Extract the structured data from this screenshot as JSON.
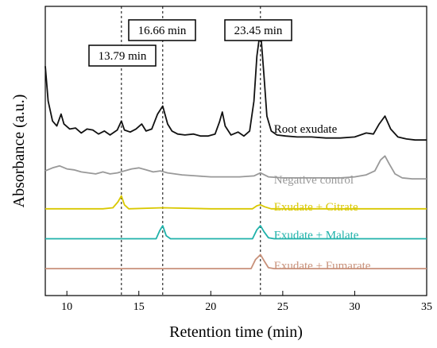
{
  "chart_data": {
    "type": "line",
    "title": "",
    "xlabel": "Retention time (min)",
    "ylabel": "Absorbance (a.u.)",
    "xlim": [
      8.5,
      35
    ],
    "xticks": [
      10,
      15,
      20,
      25,
      30,
      35
    ],
    "grid": false,
    "y_tick_labels_shown": false,
    "reference_lines": [
      {
        "x": 13.79,
        "label": "13.79 min"
      },
      {
        "x": 16.66,
        "label": "16.66 min"
      },
      {
        "x": 23.45,
        "label": "23.45 min"
      }
    ],
    "series": [
      {
        "name": "Root exudate",
        "color": "#111111",
        "baseline": 1.87,
        "points": [
          [
            8.5,
            2.6
          ],
          [
            8.7,
            2.25
          ],
          [
            9.0,
            2.05
          ],
          [
            9.3,
            2.0
          ],
          [
            9.6,
            2.12
          ],
          [
            9.8,
            2.02
          ],
          [
            10.2,
            1.97
          ],
          [
            10.6,
            1.98
          ],
          [
            11.0,
            1.93
          ],
          [
            11.4,
            1.97
          ],
          [
            11.8,
            1.96
          ],
          [
            12.2,
            1.92
          ],
          [
            12.6,
            1.95
          ],
          [
            13.0,
            1.91
          ],
          [
            13.5,
            1.96
          ],
          [
            13.79,
            2.05
          ],
          [
            14.0,
            1.96
          ],
          [
            14.4,
            1.94
          ],
          [
            14.8,
            1.97
          ],
          [
            15.2,
            2.02
          ],
          [
            15.5,
            1.95
          ],
          [
            15.9,
            1.97
          ],
          [
            16.3,
            2.12
          ],
          [
            16.66,
            2.2
          ],
          [
            17.0,
            2.02
          ],
          [
            17.3,
            1.95
          ],
          [
            17.7,
            1.92
          ],
          [
            18.2,
            1.91
          ],
          [
            18.8,
            1.92
          ],
          [
            19.3,
            1.9
          ],
          [
            19.8,
            1.9
          ],
          [
            20.3,
            1.92
          ],
          [
            20.6,
            2.04
          ],
          [
            20.8,
            2.14
          ],
          [
            21.0,
            2.0
          ],
          [
            21.4,
            1.91
          ],
          [
            21.9,
            1.94
          ],
          [
            22.3,
            1.9
          ],
          [
            22.7,
            1.95
          ],
          [
            23.0,
            2.25
          ],
          [
            23.2,
            2.7
          ],
          [
            23.45,
            2.97
          ],
          [
            23.7,
            2.5
          ],
          [
            23.9,
            2.1
          ],
          [
            24.2,
            1.95
          ],
          [
            24.6,
            1.91
          ],
          [
            25.2,
            1.9
          ],
          [
            26.0,
            1.89
          ],
          [
            27.0,
            1.89
          ],
          [
            28.0,
            1.88
          ],
          [
            29.0,
            1.88
          ],
          [
            30.0,
            1.89
          ],
          [
            30.8,
            1.93
          ],
          [
            31.3,
            1.92
          ],
          [
            31.7,
            2.02
          ],
          [
            32.1,
            2.1
          ],
          [
            32.5,
            1.97
          ],
          [
            33.0,
            1.89
          ],
          [
            33.6,
            1.87
          ],
          [
            34.2,
            1.86
          ],
          [
            35.0,
            1.86
          ]
        ]
      },
      {
        "name": "Negative control",
        "color": "#999999",
        "baseline": 1.47,
        "points": [
          [
            8.5,
            1.55
          ],
          [
            9.0,
            1.58
          ],
          [
            9.5,
            1.6
          ],
          [
            10.0,
            1.57
          ],
          [
            10.5,
            1.56
          ],
          [
            11.0,
            1.54
          ],
          [
            11.5,
            1.53
          ],
          [
            12.0,
            1.52
          ],
          [
            12.5,
            1.54
          ],
          [
            13.0,
            1.52
          ],
          [
            13.5,
            1.53
          ],
          [
            14.0,
            1.55
          ],
          [
            14.5,
            1.57
          ],
          [
            15.0,
            1.58
          ],
          [
            15.5,
            1.56
          ],
          [
            16.0,
            1.54
          ],
          [
            16.5,
            1.55
          ],
          [
            17.0,
            1.53
          ],
          [
            18.0,
            1.51
          ],
          [
            19.0,
            1.5
          ],
          [
            20.0,
            1.49
          ],
          [
            21.0,
            1.49
          ],
          [
            22.0,
            1.49
          ],
          [
            23.0,
            1.5
          ],
          [
            23.45,
            1.53
          ],
          [
            24.0,
            1.49
          ],
          [
            25.0,
            1.48
          ],
          [
            26.0,
            1.48
          ],
          [
            27.0,
            1.48
          ],
          [
            28.0,
            1.48
          ],
          [
            29.0,
            1.48
          ],
          [
            30.0,
            1.49
          ],
          [
            30.8,
            1.51
          ],
          [
            31.4,
            1.55
          ],
          [
            31.8,
            1.66
          ],
          [
            32.1,
            1.7
          ],
          [
            32.4,
            1.62
          ],
          [
            32.8,
            1.52
          ],
          [
            33.3,
            1.48
          ],
          [
            34.0,
            1.47
          ],
          [
            35.0,
            1.47
          ]
        ]
      },
      {
        "name": "Exudate + Citrate",
        "color": "#d9c800",
        "baseline": 1.17,
        "points": [
          [
            8.5,
            1.17
          ],
          [
            12.5,
            1.17
          ],
          [
            13.2,
            1.18
          ],
          [
            13.55,
            1.24
          ],
          [
            13.79,
            1.3
          ],
          [
            14.0,
            1.21
          ],
          [
            14.3,
            1.17
          ],
          [
            16.66,
            1.18
          ],
          [
            20.0,
            1.17
          ],
          [
            22.9,
            1.17
          ],
          [
            23.2,
            1.2
          ],
          [
            23.45,
            1.21
          ],
          [
            23.75,
            1.19
          ],
          [
            24.2,
            1.17
          ],
          [
            35.0,
            1.17
          ]
        ]
      },
      {
        "name": "Exudate + Malate",
        "color": "#20b2aa",
        "baseline": 0.87,
        "points": [
          [
            8.5,
            0.87
          ],
          [
            16.2,
            0.87
          ],
          [
            16.45,
            0.95
          ],
          [
            16.66,
            1.0
          ],
          [
            16.9,
            0.9
          ],
          [
            17.2,
            0.87
          ],
          [
            22.9,
            0.87
          ],
          [
            23.2,
            0.96
          ],
          [
            23.45,
            1.0
          ],
          [
            23.7,
            0.94
          ],
          [
            24.0,
            0.88
          ],
          [
            24.4,
            0.87
          ],
          [
            35.0,
            0.87
          ]
        ]
      },
      {
        "name": "Exudate + Fumarate",
        "color": "#c8917a",
        "baseline": 0.57,
        "points": [
          [
            8.5,
            0.57
          ],
          [
            22.8,
            0.57
          ],
          [
            23.1,
            0.66
          ],
          [
            23.45,
            0.71
          ],
          [
            23.7,
            0.65
          ],
          [
            24.0,
            0.58
          ],
          [
            24.4,
            0.57
          ],
          [
            35.0,
            0.57
          ]
        ]
      }
    ]
  }
}
